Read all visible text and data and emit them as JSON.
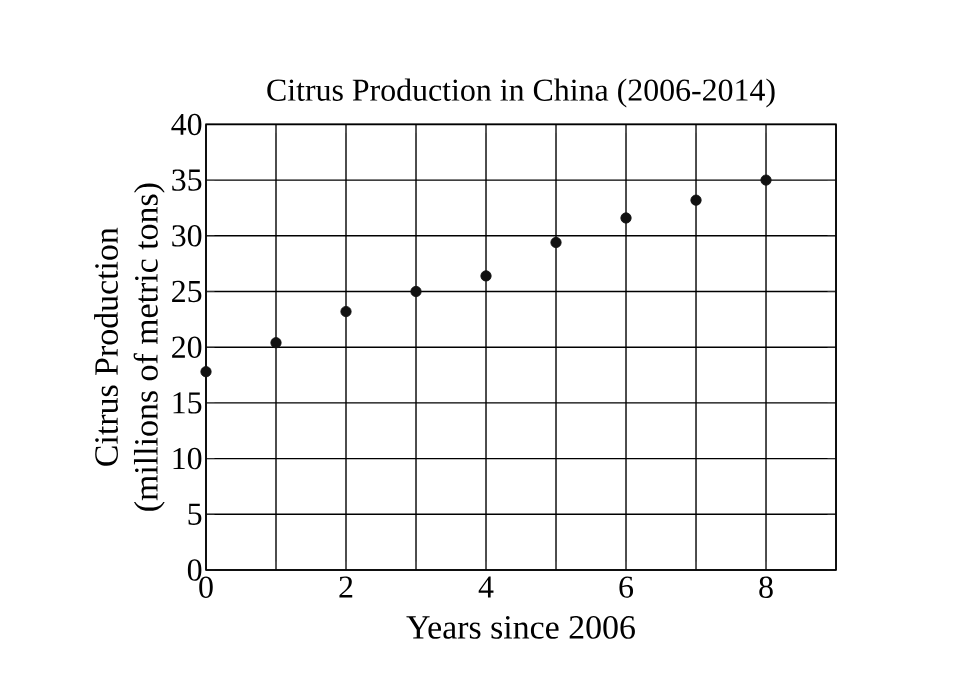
{
  "chart_data": {
    "type": "scatter",
    "title": "Citrus Production in China (2006-2014)",
    "xlabel": "Years since 2006",
    "ylabel": "Citrus Production\n(millions of metric tons)",
    "x": [
      0,
      1,
      2,
      3,
      4,
      5,
      6,
      7,
      8
    ],
    "values": [
      17.8,
      20.4,
      23.2,
      25.0,
      26.4,
      29.4,
      31.6,
      33.2,
      35.0
    ],
    "color": "#111111",
    "marker": "circle",
    "grid": true,
    "xlim": [
      0,
      9
    ],
    "xticks": [
      0,
      {
        "value": 1,
        "label": null
      },
      2,
      {
        "value": 3,
        "label": null
      },
      4,
      {
        "value": 5,
        "label": null
      },
      6,
      {
        "value": 7,
        "label": null
      },
      8,
      {
        "value": 9,
        "label": null
      }
    ],
    "ylim": [
      0,
      40
    ],
    "yticks": [
      0,
      5,
      10,
      15,
      20,
      25,
      30,
      35,
      40
    ]
  }
}
